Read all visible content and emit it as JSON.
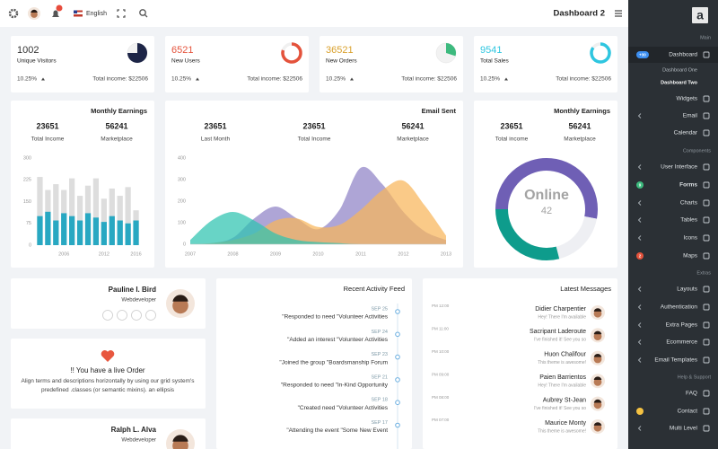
{
  "topbar": {
    "language": "English",
    "page_title": "Dashboard 2"
  },
  "sidebar": {
    "logo": "a",
    "items": [
      {
        "kind": "header",
        "label": "Main"
      },
      {
        "kind": "item",
        "label": "Dashboard",
        "badge": "+30",
        "badge_color": "#3d8ff0",
        "active": true
      },
      {
        "kind": "sub",
        "label": "Dashboard One"
      },
      {
        "kind": "sub",
        "label": "Dashboard Two",
        "active": true
      },
      {
        "kind": "item",
        "label": "Widgets"
      },
      {
        "kind": "item",
        "label": "Email",
        "submenu": true
      },
      {
        "kind": "item",
        "label": "Calendar"
      },
      {
        "kind": "header",
        "label": "Components"
      },
      {
        "kind": "item",
        "label": "User Interface",
        "submenu": true
      },
      {
        "kind": "item",
        "label": "Forms",
        "badge": "9",
        "badge_color": "#3dba7e",
        "bold": true
      },
      {
        "kind": "item",
        "label": "Charts",
        "submenu": true
      },
      {
        "kind": "item",
        "label": "Tables",
        "submenu": true
      },
      {
        "kind": "item",
        "label": "Icons",
        "submenu": true
      },
      {
        "kind": "item",
        "label": "Maps",
        "badge": "2",
        "badge_color": "#e4523b"
      },
      {
        "kind": "header",
        "label": "Extras"
      },
      {
        "kind": "item",
        "label": "Layouts",
        "submenu": true
      },
      {
        "kind": "item",
        "label": "Authentication",
        "submenu": true
      },
      {
        "kind": "item",
        "label": "Extra Pages",
        "submenu": true
      },
      {
        "kind": "item",
        "label": "Ecommerce",
        "submenu": true
      },
      {
        "kind": "item",
        "label": "Email Templates",
        "submenu": true
      },
      {
        "kind": "header",
        "label": "Help & Support"
      },
      {
        "kind": "item",
        "label": "FAQ"
      },
      {
        "kind": "item",
        "label": "Contact",
        "badge_color": "#f5c242"
      },
      {
        "kind": "item",
        "label": "Multi Level",
        "submenu": true
      }
    ]
  },
  "stats": [
    {
      "value": "1002",
      "label": "Unique Visitors",
      "change": "10.25%",
      "income": "Total income: $22506",
      "fill": 75,
      "color": "#1d2547",
      "value_color": "#333333",
      "style": "pie"
    },
    {
      "value": "6521",
      "label": "New Users",
      "change": "10.25%",
      "income": "Total income: $22506",
      "fill": 80,
      "color": "#e4523b",
      "value_color": "#e4523b",
      "style": "donut"
    },
    {
      "value": "36521",
      "label": "New Orders",
      "change": "10.25%",
      "income": "Total income: $22506",
      "fill": 30,
      "color": "#3dba7e",
      "value_color": "#d9a02b",
      "style": "pie"
    },
    {
      "value": "9541",
      "label": "Total Sales",
      "change": "10.25%",
      "income": "Total income: $22506",
      "fill": 85,
      "color": "#2ec6e0",
      "value_color": "#2ec6e0",
      "style": "donut"
    }
  ],
  "earnings": {
    "title": "Monthly Earnings",
    "stats": [
      {
        "value": "23651",
        "label": "Total Income"
      },
      {
        "value": "56241",
        "label": "Marketplace"
      }
    ],
    "chart": {
      "type": "bar",
      "categories": [
        null,
        null,
        null,
        "2006",
        null,
        null,
        null,
        null,
        "2012",
        null,
        null,
        null,
        "2016"
      ],
      "series": [
        {
          "color": "#dddddd",
          "values": [
            235,
            190,
            210,
            190,
            230,
            170,
            205,
            230,
            160,
            195,
            170,
            200,
            120
          ]
        },
        {
          "color": "#28a8c2",
          "values": [
            100,
            115,
            85,
            110,
            100,
            85,
            110,
            95,
            80,
            100,
            85,
            75,
            85
          ]
        }
      ],
      "ylim": [
        0,
        300
      ],
      "yticks": [
        0,
        75,
        150,
        225,
        300
      ]
    }
  },
  "email": {
    "title": "Email Sent",
    "stats": [
      {
        "value": "23651",
        "label": "Last Month"
      },
      {
        "value": "23651",
        "label": "Total Income"
      },
      {
        "value": "56241",
        "label": "Marketplace"
      }
    ],
    "chart": {
      "type": "area",
      "x": [
        2007,
        2007.5,
        2008,
        2008.5,
        2009,
        2009.5,
        2010,
        2010.5,
        2011,
        2011.5,
        2012,
        2012.5,
        2013
      ],
      "series": [
        {
          "color": "#8f82c6",
          "values": [
            0,
            5,
            30,
            120,
            175,
            120,
            70,
            160,
            355,
            280,
            150,
            60,
            20
          ]
        },
        {
          "color": "#f8b65a",
          "values": [
            0,
            5,
            20,
            50,
            110,
            120,
            80,
            90,
            160,
            250,
            295,
            180,
            40
          ]
        },
        {
          "color": "#2ec4b0",
          "values": [
            20,
            110,
            150,
            110,
            50,
            20,
            10,
            5,
            0,
            0,
            0,
            0,
            0
          ]
        }
      ],
      "xlim": [
        2007,
        2013
      ],
      "xticks": [
        2007,
        2008,
        2009,
        2010,
        2011,
        2012,
        2013
      ],
      "ylim": [
        0,
        400
      ],
      "yticks": [
        0,
        100,
        200,
        300,
        400
      ]
    }
  },
  "online": {
    "title": "Monthly Earnings",
    "stats": [
      {
        "value": "23651",
        "label": "Total income"
      },
      {
        "value": "56241",
        "label": "Marketplace"
      }
    ],
    "chart": {
      "type": "donut",
      "values": [
        53,
        18,
        29
      ],
      "colors": [
        "#6f5fb5",
        "#eeeff3",
        "#0e9c8c"
      ],
      "center_title": "Online",
      "center_value": "42"
    }
  },
  "profiles": [
    {
      "name": "Pauline I. Bird",
      "role": "Webdeveloper"
    },
    {
      "name": "Ralph L. Alva",
      "role": "Webdeveloper"
    }
  ],
  "order": {
    "title": "!! You have a live Order",
    "text": "Align terms and descriptions horizontally by using our grid system's predefined .classes (or semantic mixins). an ellipsis"
  },
  "activity": {
    "title": "Recent Activity Feed",
    "items": [
      {
        "date": "SEP 25",
        "text": "\"Responded to need \"Volunteer Activities"
      },
      {
        "date": "SEP 24",
        "text": "\"Added an interest \"Volunteer Activities"
      },
      {
        "date": "SEP 23",
        "text": "\"Joined the group \"Boardsmanship Forum"
      },
      {
        "date": "SEP 21",
        "text": "\"Responded to need \"In-Kind Opportunity"
      },
      {
        "date": "SEP 18",
        "text": "\"Created need \"Volunteer Activities"
      },
      {
        "date": "SEP 17",
        "text": "\"Attending the event \"Some New Event"
      }
    ]
  },
  "messages": {
    "title": "Latest Messages",
    "items": [
      {
        "time": "PM 12:00",
        "name": "Didier Charpentier",
        "text": "Hey! There I'm available"
      },
      {
        "time": "PM 11:00",
        "name": "Sacripant Laderoute",
        "text": "I've finished it! See you so"
      },
      {
        "time": "PM 10:00",
        "name": "Huon Chalifour",
        "text": "This theme is awesome!"
      },
      {
        "time": "PM 09:00",
        "name": "Paien Barrientos",
        "text": "Hey! There I'm available"
      },
      {
        "time": "PM 08:00",
        "name": "Aubrey St-Jean",
        "text": "I've finished it! See you so"
      },
      {
        "time": "PM 07:00",
        "name": "Maurice Monty",
        "text": "This theme is awesome!"
      }
    ]
  }
}
